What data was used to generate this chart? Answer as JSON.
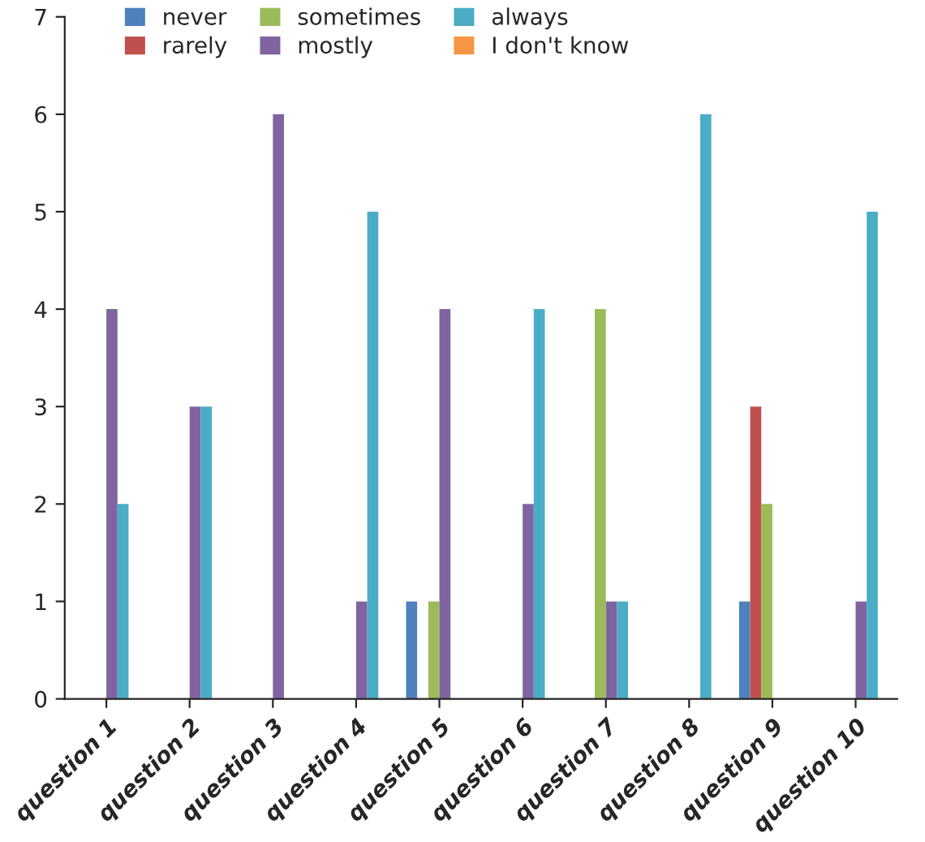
{
  "chart_data": {
    "type": "bar",
    "categories": [
      "question 1",
      "question 2",
      "question 3",
      "question 4",
      "question 5",
      "question 6",
      "question 7",
      "question 8",
      "question 9",
      "question 10"
    ],
    "series": [
      {
        "name": "never",
        "color": "#4f81bd",
        "values": [
          null,
          null,
          null,
          null,
          1,
          null,
          null,
          null,
          1,
          null
        ]
      },
      {
        "name": "rarely",
        "color": "#c0504d",
        "values": [
          null,
          null,
          null,
          null,
          null,
          null,
          null,
          null,
          3,
          null
        ]
      },
      {
        "name": "sometimes",
        "color": "#9bbb59",
        "values": [
          null,
          null,
          null,
          null,
          1,
          null,
          4,
          null,
          2,
          null
        ]
      },
      {
        "name": "mostly",
        "color": "#8064a2",
        "values": [
          4,
          3,
          6,
          1,
          4,
          2,
          1,
          null,
          null,
          1
        ]
      },
      {
        "name": "always",
        "color": "#4bacc6",
        "values": [
          2,
          3,
          null,
          5,
          null,
          4,
          1,
          6,
          null,
          5
        ]
      },
      {
        "name": "I don't know",
        "color": "#f79646",
        "values": [
          null,
          null,
          null,
          null,
          null,
          null,
          null,
          null,
          null,
          null
        ]
      }
    ],
    "ylim": [
      0,
      7
    ],
    "yticks": [
      0,
      1,
      2,
      3,
      4,
      5,
      6,
      7
    ],
    "grid": false,
    "legend": "top left"
  }
}
